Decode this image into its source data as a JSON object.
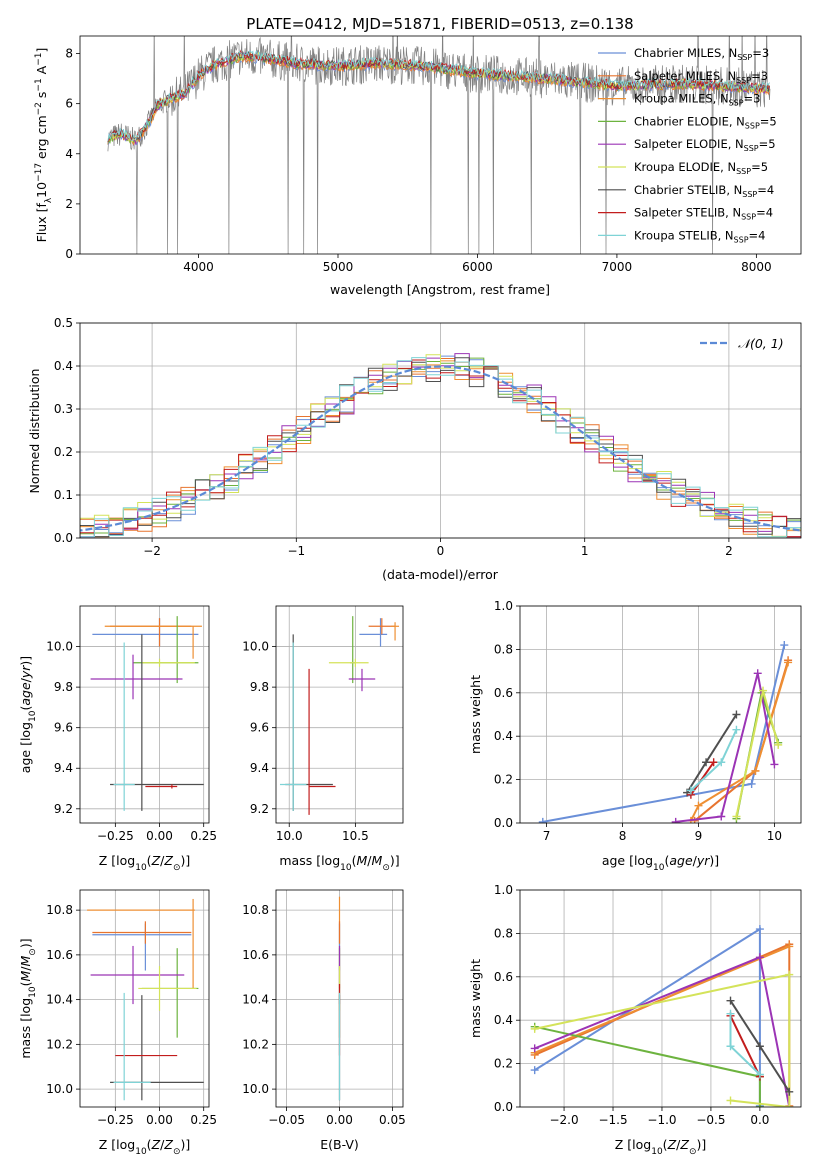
{
  "figure": {
    "title": "PLATE=0412, MJD=51871, FIBERID=0513, z=0.138"
  },
  "colors": {
    "Chabrier MILES": "#6a8fd8",
    "Salpeter MILES": "#e7742f",
    "Kroupa MILES": "#ee8f33",
    "Chabrier ELODIE": "#6db33f",
    "Salpeter ELODIE": "#9b34b5",
    "Kroupa ELODIE": "#d4e35a",
    "Chabrier STELIB": "#4f4f4f",
    "Salpeter STELIB": "#c21d1d",
    "Kroupa STELIB": "#7fd3d6",
    "data": "#808080",
    "gaussian": "#5b8ad6"
  },
  "chart_data": [
    {
      "id": "spectrum",
      "type": "line",
      "xlabel": "wavelength [Angstrom, rest frame]",
      "ylabel": "Flux [f_λ 10^-17 erg cm^-2 s^-1 A^-1]",
      "xlim": [
        3150,
        8320
      ],
      "ylim": [
        0,
        8.7
      ],
      "xticks": [
        4000,
        5000,
        6000,
        7000,
        8000
      ],
      "yticks": [
        0,
        2,
        4,
        6,
        8
      ],
      "data_range": [
        3350,
        8100
      ],
      "grid": false,
      "legend_position": "top-right",
      "legend": [
        {
          "label": "Chabrier MILES, N",
          "sub": "SSP",
          "suffix": "=3"
        },
        {
          "label": "Salpeter MILES, N",
          "sub": "SSP",
          "suffix": "=3"
        },
        {
          "label": "Kroupa MILES, N",
          "sub": "SSP",
          "suffix": "=3"
        },
        {
          "label": "Chabrier ELODIE, N",
          "sub": "SSP",
          "suffix": "=5"
        },
        {
          "label": "Salpeter ELODIE, N",
          "sub": "SSP",
          "suffix": "=5"
        },
        {
          "label": "Kroupa ELODIE, N",
          "sub": "SSP",
          "suffix": "=5"
        },
        {
          "label": "Chabrier STELIB, N",
          "sub": "SSP",
          "suffix": "=4"
        },
        {
          "label": "Salpeter STELIB, N",
          "sub": "SSP",
          "suffix": "=4"
        },
        {
          "label": "Kroupa STELIB, N",
          "sub": "SSP",
          "suffix": "=4"
        }
      ],
      "continuum": [
        [
          3350,
          4.6
        ],
        [
          3450,
          4.8
        ],
        [
          3550,
          4.5
        ],
        [
          3650,
          5.3
        ],
        [
          3700,
          5.9
        ],
        [
          3800,
          6.2
        ],
        [
          3900,
          6.4
        ],
        [
          4000,
          7.1
        ],
        [
          4100,
          7.5
        ],
        [
          4300,
          7.9
        ],
        [
          4500,
          7.8
        ],
        [
          4700,
          7.6
        ],
        [
          5000,
          7.5
        ],
        [
          5300,
          7.6
        ],
        [
          5600,
          7.5
        ],
        [
          6000,
          7.2
        ],
        [
          6500,
          7.0
        ],
        [
          7000,
          6.7
        ],
        [
          7500,
          6.8
        ],
        [
          8000,
          6.6
        ],
        [
          8100,
          6.6
        ]
      ]
    },
    {
      "id": "residuals",
      "type": "histogram",
      "xlabel": "(data-model)/error",
      "ylabel": "Normed distribution",
      "xlim": [
        -2.5,
        2.5
      ],
      "ylim": [
        0,
        0.5
      ],
      "xticks": [
        -2,
        -1,
        0,
        1,
        2
      ],
      "xtick_labels": [
        "−2",
        "−1",
        "0",
        "1",
        "2"
      ],
      "yticks": [
        0.0,
        0.1,
        0.2,
        0.3,
        0.4,
        0.5
      ],
      "grid": true,
      "bin_width": 0.1,
      "legend_position": "top-right",
      "legend_label": "𝒩(0, 1)"
    },
    {
      "id": "age-vs-Z",
      "type": "errorbar",
      "xlabel": "Z [log10(Z/Z⊙)]",
      "ylabel": "age  [log10(age/yr)]",
      "xlim": [
        -0.45,
        0.28
      ],
      "ylim": [
        9.13,
        10.2
      ],
      "xticks": [
        -0.25,
        0.0,
        0.25
      ],
      "xtick_labels": [
        "−0.25",
        "0.00",
        "0.25"
      ],
      "yticks": [
        9.2,
        9.4,
        9.6,
        9.8,
        10.0
      ],
      "grid": true,
      "points": [
        {
          "series": "Chabrier MILES",
          "x": 0.0,
          "y": 10.06,
          "xlo": 0.38,
          "xhi": 0.22,
          "ylo": 0.06,
          "yhi": 0.08
        },
        {
          "series": "Salpeter MILES",
          "x": 0.0,
          "y": 10.1,
          "xlo": 0.28,
          "xhi": 0.18,
          "ylo": 0.1,
          "yhi": 0.04
        },
        {
          "series": "Kroupa MILES",
          "x": 0.19,
          "y": 10.1,
          "xlo": 0.5,
          "xhi": 0.05,
          "ylo": 0.16,
          "yhi": 0.0
        },
        {
          "series": "Chabrier ELODIE",
          "x": 0.1,
          "y": 9.92,
          "xlo": 0.25,
          "xhi": 0.12,
          "ylo": 0.1,
          "yhi": 0.23
        },
        {
          "series": "Salpeter ELODIE",
          "x": -0.15,
          "y": 9.84,
          "xlo": 0.24,
          "xhi": 0.28,
          "ylo": 0.1,
          "yhi": 0.12
        },
        {
          "series": "Kroupa ELODIE",
          "x": 0.0,
          "y": 9.92,
          "xlo": 0.1,
          "xhi": 0.2,
          "ylo": 0.02,
          "yhi": 0.02
        },
        {
          "series": "Chabrier STELIB",
          "x": -0.1,
          "y": 9.32,
          "xlo": 0.18,
          "xhi": 0.35,
          "ylo": 0.13,
          "yhi": 0.74
        },
        {
          "series": "Salpeter STELIB",
          "x": 0.07,
          "y": 9.31,
          "xlo": 0.15,
          "xhi": 0.03,
          "ylo": 0.01,
          "yhi": 0.01
        },
        {
          "series": "Kroupa STELIB",
          "x": -0.2,
          "y": 9.32,
          "xlo": 0.06,
          "xhi": 0.06,
          "ylo": 0.13,
          "yhi": 0.7
        }
      ]
    },
    {
      "id": "age-vs-mass",
      "type": "errorbar",
      "xlabel": "mass [log10(M/M⊙)]",
      "ylabel": "",
      "xlim": [
        9.9,
        10.86
      ],
      "ylim": [
        9.13,
        10.2
      ],
      "xticks": [
        10.0,
        10.5
      ],
      "xtick_labels": [
        "10.0",
        "10.5"
      ],
      "yticks": [
        9.2,
        9.4,
        9.6,
        9.8,
        10.0
      ],
      "grid": true,
      "points": [
        {
          "series": "Chabrier MILES",
          "x": 10.69,
          "y": 10.06,
          "xlo": 0.16,
          "xhi": 0.05,
          "ylo": 0.06,
          "yhi": 0.08
        },
        {
          "series": "Salpeter MILES",
          "x": 10.7,
          "y": 10.1,
          "xlo": 0.1,
          "xhi": 0.1,
          "ylo": 0.04,
          "yhi": 0.04
        },
        {
          "series": "Kroupa MILES",
          "x": 10.8,
          "y": 10.1,
          "xlo": 0.03,
          "xhi": 0.03,
          "ylo": 0.07,
          "yhi": 0.02
        },
        {
          "series": "Chabrier ELODIE",
          "x": 10.48,
          "y": 9.92,
          "xlo": 0.02,
          "xhi": 0.02,
          "ylo": 0.1,
          "yhi": 0.23
        },
        {
          "series": "Salpeter ELODIE",
          "x": 10.55,
          "y": 9.84,
          "xlo": 0.1,
          "xhi": 0.1,
          "ylo": 0.06,
          "yhi": 0.05
        },
        {
          "series": "Kroupa ELODIE",
          "x": 10.5,
          "y": 9.92,
          "xlo": 0.2,
          "xhi": 0.1,
          "ylo": 0.02,
          "yhi": 0.02
        },
        {
          "series": "Chabrier STELIB",
          "x": 10.03,
          "y": 9.32,
          "xlo": 0.06,
          "xhi": 0.3,
          "ylo": 0.13,
          "yhi": 0.74
        },
        {
          "series": "Salpeter STELIB",
          "x": 10.15,
          "y": 9.31,
          "xlo": 0.0,
          "xhi": 0.2,
          "ylo": 0.14,
          "yhi": 0.58
        },
        {
          "series": "Kroupa STELIB",
          "x": 10.03,
          "y": 9.32,
          "xlo": 0.1,
          "xhi": 0.1,
          "ylo": 0.13,
          "yhi": 0.7
        }
      ]
    },
    {
      "id": "mass-weight-vs-age",
      "type": "line",
      "xlabel": "age  [log10(age/yr)]",
      "ylabel": "mass weight",
      "xlim": [
        6.65,
        10.35
      ],
      "ylim": [
        0,
        1.0
      ],
      "xticks": [
        7,
        8,
        9,
        10
      ],
      "yticks": [
        0.0,
        0.2,
        0.4,
        0.6,
        0.8,
        1.0
      ],
      "grid": true,
      "series": [
        {
          "name": "Chabrier MILES",
          "x": [
            6.95,
            9.7,
            10.13
          ],
          "y": [
            0.005,
            0.18,
            0.82
          ]
        },
        {
          "name": "Salpeter MILES",
          "x": [
            8.95,
            9.75,
            10.18
          ],
          "y": [
            0.01,
            0.24,
            0.75
          ]
        },
        {
          "name": "Kroupa MILES",
          "x": [
            8.9,
            9.0,
            9.75,
            10.18
          ],
          "y": [
            0.01,
            0.08,
            0.24,
            0.74
          ]
        },
        {
          "name": "Chabrier ELODIE",
          "x": [
            9.5,
            9.83,
            10.05
          ],
          "y": [
            0.02,
            0.6,
            0.37
          ]
        },
        {
          "name": "Salpeter ELODIE",
          "x": [
            8.7,
            9.3,
            9.78,
            10.0
          ],
          "y": [
            0.005,
            0.03,
            0.69,
            0.27
          ]
        },
        {
          "name": "Kroupa ELODIE",
          "x": [
            9.5,
            9.85,
            10.05
          ],
          "y": [
            0.03,
            0.61,
            0.36
          ]
        },
        {
          "name": "Chabrier STELIB",
          "x": [
            8.85,
            9.1,
            9.5
          ],
          "y": [
            0.14,
            0.28,
            0.5
          ]
        },
        {
          "name": "Salpeter STELIB",
          "x": [
            8.9,
            9.2
          ],
          "y": [
            0.13,
            0.28
          ]
        },
        {
          "name": "Kroupa STELIB",
          "x": [
            8.9,
            9.3,
            9.5
          ],
          "y": [
            0.15,
            0.28,
            0.43
          ]
        }
      ]
    },
    {
      "id": "mass-vs-Z",
      "type": "errorbar",
      "xlabel": "Z [log10(Z/Z⊙)]",
      "ylabel": "mass [log10(M/M⊙)]",
      "xlim": [
        -0.45,
        0.28
      ],
      "ylim": [
        9.92,
        10.89
      ],
      "xticks": [
        -0.25,
        0.0,
        0.25
      ],
      "xtick_labels": [
        "−0.25",
        "0.00",
        "0.25"
      ],
      "yticks": [
        10.0,
        10.2,
        10.4,
        10.6,
        10.8
      ],
      "grid": true,
      "points": [
        {
          "series": "Chabrier MILES",
          "x": -0.08,
          "y": 10.69,
          "xlo": 0.3,
          "xhi": 0.26,
          "ylo": 0.16,
          "yhi": 0.05
        },
        {
          "series": "Salpeter MILES",
          "x": -0.08,
          "y": 10.7,
          "xlo": 0.3,
          "xhi": 0.26,
          "ylo": 0.05,
          "yhi": 0.05
        },
        {
          "series": "Kroupa MILES",
          "x": 0.19,
          "y": 10.8,
          "xlo": 0.6,
          "xhi": 0.01,
          "ylo": 0.35,
          "yhi": 0.05
        },
        {
          "series": "Chabrier ELODIE",
          "x": 0.1,
          "y": 10.45,
          "xlo": 0.2,
          "xhi": 0.12,
          "ylo": 0.22,
          "yhi": 0.18
        },
        {
          "series": "Salpeter ELODIE",
          "x": -0.15,
          "y": 10.51,
          "xlo": 0.24,
          "xhi": 0.29,
          "ylo": 0.13,
          "yhi": 0.13
        },
        {
          "series": "Kroupa ELODIE",
          "x": 0.0,
          "y": 10.45,
          "xlo": 0.12,
          "xhi": 0.21,
          "ylo": 0.1,
          "yhi": 0.1
        },
        {
          "series": "Chabrier STELIB",
          "x": -0.1,
          "y": 10.03,
          "xlo": 0.18,
          "xhi": 0.35,
          "ylo": 0.08,
          "yhi": 0.39
        },
        {
          "series": "Salpeter STELIB",
          "x": -0.1,
          "y": 10.15,
          "xlo": 0.15,
          "xhi": 0.2,
          "ylo": 0.0,
          "yhi": 0.0
        },
        {
          "series": "Kroupa STELIB",
          "x": -0.2,
          "y": 10.03,
          "xlo": 0.06,
          "xhi": 0.15,
          "ylo": 0.08,
          "yhi": 0.4
        }
      ]
    },
    {
      "id": "mass-vs-EBV",
      "type": "errorbar",
      "xlabel": "E(B-V)",
      "ylabel": "",
      "xlim": [
        -0.06,
        0.06
      ],
      "ylim": [
        9.92,
        10.89
      ],
      "xticks": [
        -0.05,
        0.0,
        0.05
      ],
      "xtick_labels": [
        "−0.05",
        "0.00",
        "0.05"
      ],
      "yticks": [
        10.0,
        10.2,
        10.4,
        10.6,
        10.8
      ],
      "grid": true,
      "points": [
        {
          "series": "Kroupa MILES",
          "x": 0.0,
          "y": 10.8,
          "xlo": 0,
          "xhi": 0,
          "ylo": 0.35,
          "yhi": 0.06
        },
        {
          "series": "Chabrier MILES",
          "x": 0.0,
          "y": 10.69,
          "xlo": 0,
          "xhi": 0,
          "ylo": 0.16,
          "yhi": 0.05
        },
        {
          "series": "Salpeter MILES",
          "x": 0.0,
          "y": 10.7,
          "xlo": 0,
          "xhi": 0,
          "ylo": 0.05,
          "yhi": 0.05
        },
        {
          "series": "Chabrier ELODIE",
          "x": 0.0,
          "y": 10.45,
          "xlo": 0,
          "xhi": 0,
          "ylo": 0.22,
          "yhi": 0.18
        },
        {
          "series": "Salpeter ELODIE",
          "x": 0.0,
          "y": 10.51,
          "xlo": 0,
          "xhi": 0,
          "ylo": 0.13,
          "yhi": 0.13
        },
        {
          "series": "Kroupa ELODIE",
          "x": 0.0,
          "y": 10.45,
          "xlo": 0,
          "xhi": 0,
          "ylo": 0.1,
          "yhi": 0.1
        },
        {
          "series": "Chabrier STELIB",
          "x": 0.0,
          "y": 10.03,
          "xlo": 0,
          "xhi": 0,
          "ylo": 0.08,
          "yhi": 0.39
        },
        {
          "series": "Salpeter STELIB",
          "x": 0.0,
          "y": 10.15,
          "xlo": 0,
          "xhi": 0,
          "ylo": 0.0,
          "yhi": 0.32
        },
        {
          "series": "Kroupa STELIB",
          "x": 0.0,
          "y": 10.03,
          "xlo": 0,
          "xhi": 0,
          "ylo": 0.08,
          "yhi": 0.4
        }
      ]
    },
    {
      "id": "mass-weight-vs-Z",
      "type": "line",
      "xlabel": "Z [log10(Z/Z⊙)]",
      "ylabel": "mass weight",
      "xlim": [
        -2.45,
        0.42
      ],
      "ylim": [
        0,
        1.0
      ],
      "xticks": [
        -2.0,
        -1.5,
        -1.0,
        -0.5,
        0.0
      ],
      "xtick_labels": [
        "−2.0",
        "−1.5",
        "−1.0",
        "−0.5",
        "0.0"
      ],
      "yticks": [
        0.0,
        0.2,
        0.4,
        0.6,
        0.8,
        1.0
      ],
      "grid": true,
      "series": [
        {
          "name": "Chabrier MILES",
          "x": [
            -2.3,
            0.0,
            0.0
          ],
          "y": [
            0.17,
            0.82,
            0.005
          ]
        },
        {
          "name": "Salpeter MILES",
          "x": [
            -2.3,
            0.3,
            0.3
          ],
          "y": [
            0.24,
            0.75,
            0.005
          ]
        },
        {
          "name": "Kroupa MILES",
          "x": [
            -2.3,
            0.3
          ],
          "y": [
            0.25,
            0.74
          ]
        },
        {
          "name": "Chabrier ELODIE",
          "x": [
            -2.3,
            0.0,
            0.0
          ],
          "y": [
            0.37,
            0.14,
            0.0
          ]
        },
        {
          "name": "Salpeter ELODIE",
          "x": [
            -2.3,
            0.0,
            0.3
          ],
          "y": [
            0.27,
            0.69,
            0.0
          ]
        },
        {
          "name": "Kroupa ELODIE",
          "x": [
            -2.3,
            0.3,
            0.3,
            -0.3
          ],
          "y": [
            0.36,
            0.61,
            0.0,
            0.03
          ]
        },
        {
          "name": "Chabrier STELIB",
          "x": [
            -0.3,
            0.0,
            0.3
          ],
          "y": [
            0.49,
            0.28,
            0.07
          ]
        },
        {
          "name": "Salpeter STELIB",
          "x": [
            -0.3,
            0.0
          ],
          "y": [
            0.42,
            0.14
          ]
        },
        {
          "name": "Kroupa STELIB",
          "x": [
            -0.3,
            -0.3,
            0.0
          ],
          "y": [
            0.43,
            0.28,
            0.15
          ]
        }
      ]
    }
  ]
}
